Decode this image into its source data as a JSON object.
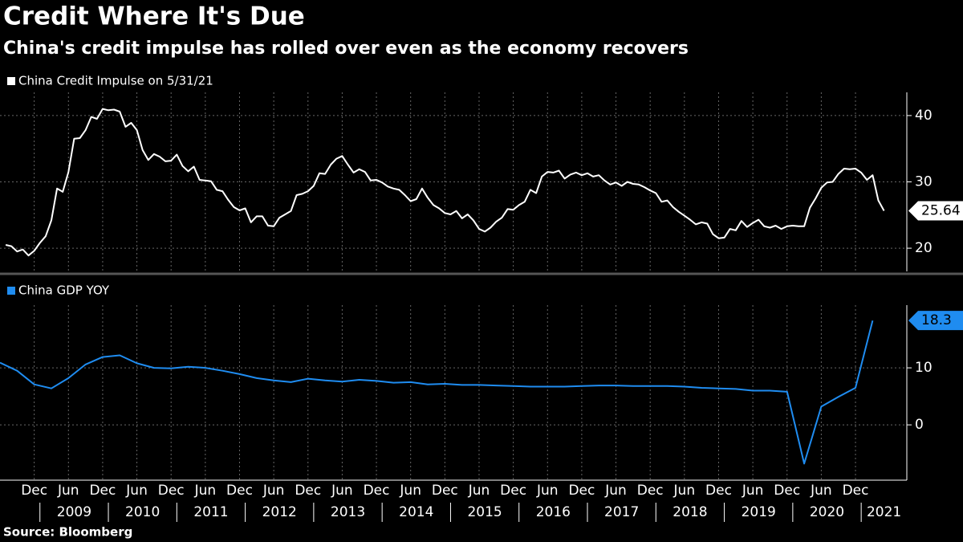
{
  "title": "Credit Where It's Due",
  "subtitle": "China's credit impulse has rolled over even as the economy recovers",
  "source": "Source: Bloomberg",
  "xlim": [
    "2008-06",
    "2021-09"
  ],
  "xticks": [
    {
      "value": "2008-12",
      "label": "Dec"
    },
    {
      "value": "2009-06",
      "label": "Jun"
    },
    {
      "value": "2009-12",
      "label": "Dec"
    },
    {
      "value": "2010-06",
      "label": "Jun"
    },
    {
      "value": "2010-12",
      "label": "Dec"
    },
    {
      "value": "2011-06",
      "label": "Jun"
    },
    {
      "value": "2011-12",
      "label": "Dec"
    },
    {
      "value": "2012-06",
      "label": "Jun"
    },
    {
      "value": "2012-12",
      "label": "Dec"
    },
    {
      "value": "2013-06",
      "label": "Jun"
    },
    {
      "value": "2013-12",
      "label": "Dec"
    },
    {
      "value": "2014-06",
      "label": "Jun"
    },
    {
      "value": "2014-12",
      "label": "Dec"
    },
    {
      "value": "2015-06",
      "label": "Jun"
    },
    {
      "value": "2015-12",
      "label": "Dec"
    },
    {
      "value": "2016-06",
      "label": "Jun"
    },
    {
      "value": "2016-12",
      "label": "Dec"
    },
    {
      "value": "2017-06",
      "label": "Jun"
    },
    {
      "value": "2017-12",
      "label": "Dec"
    },
    {
      "value": "2018-06",
      "label": "Jun"
    },
    {
      "value": "2018-12",
      "label": "Dec"
    },
    {
      "value": "2019-06",
      "label": "Jun"
    },
    {
      "value": "2019-12",
      "label": "Dec"
    },
    {
      "value": "2020-06",
      "label": "Jun"
    },
    {
      "value": "2020-12",
      "label": "Dec"
    }
  ],
  "year_labels": [
    "2009",
    "2010",
    "2011",
    "2012",
    "2013",
    "2014",
    "2015",
    "2016",
    "2017",
    "2018",
    "2019",
    "2020",
    "2021"
  ],
  "chart_data": [
    {
      "type": "line",
      "ylim": [
        16.5,
        43.5
      ],
      "yticks": [
        20,
        30,
        40
      ],
      "grid": true,
      "series": [
        {
          "name": "China Credit Impulse on 5/31/21",
          "color": "#ffffff",
          "start": "2008-07",
          "step_months": 1,
          "values": [
            20.5,
            20.3,
            19.5,
            19.8,
            18.9,
            19.6,
            20.8,
            21.8,
            24.2,
            29.0,
            28.5,
            31.5,
            36.5,
            36.6,
            37.8,
            39.8,
            39.5,
            41.0,
            40.8,
            40.9,
            40.6,
            38.3,
            38.9,
            37.8,
            34.8,
            33.3,
            34.2,
            33.8,
            33.1,
            33.2,
            34.1,
            32.4,
            31.6,
            32.3,
            30.3,
            30.2,
            30.1,
            28.8,
            28.6,
            27.3,
            26.2,
            25.7,
            26.0,
            23.9,
            24.8,
            24.8,
            23.4,
            23.3,
            24.6,
            25.1,
            25.6,
            28.0,
            28.2,
            28.6,
            29.4,
            31.3,
            31.2,
            32.6,
            33.5,
            33.9,
            32.6,
            31.4,
            31.9,
            31.5,
            30.2,
            30.3,
            29.9,
            29.3,
            29.0,
            28.8,
            28.0,
            27.1,
            27.4,
            29.0,
            27.6,
            26.5,
            26.0,
            25.3,
            25.1,
            25.6,
            24.5,
            25.1,
            24.2,
            22.9,
            22.5,
            23.1,
            24.0,
            24.6,
            25.9,
            25.8,
            26.5,
            27.0,
            28.8,
            28.3,
            30.8,
            31.5,
            31.4,
            31.7,
            30.5,
            31.1,
            31.4,
            31.0,
            31.3,
            30.8,
            31.0,
            30.2,
            29.6,
            29.9,
            29.4,
            30.0,
            29.7,
            29.6,
            29.2,
            28.7,
            28.3,
            27.0,
            27.2,
            26.2,
            25.5,
            24.9,
            24.3,
            23.6,
            23.9,
            23.7,
            22.1,
            21.5,
            21.6,
            22.9,
            22.7,
            24.1,
            23.2,
            23.8,
            24.3,
            23.3,
            23.1,
            23.4,
            22.9,
            23.3,
            23.4,
            23.3,
            23.3,
            26.1,
            27.5,
            29.1,
            29.9,
            30.0,
            31.2,
            32.0,
            31.9,
            32.0,
            31.4,
            30.3,
            31.0,
            27.2,
            25.64
          ]
        }
      ]
    },
    {
      "type": "line",
      "ylim": [
        -9.7,
        21
      ],
      "yticks": [
        0,
        10
      ],
      "grid": true,
      "series": [
        {
          "name": "China GDP YOY",
          "color": "#1f8cf0",
          "start": "2008-06",
          "step_months": 3,
          "values": [
            10.9,
            9.5,
            7.1,
            6.4,
            8.2,
            10.6,
            11.9,
            12.2,
            10.8,
            10.0,
            9.9,
            10.2,
            10.0,
            9.5,
            8.9,
            8.2,
            7.8,
            7.5,
            8.1,
            7.8,
            7.6,
            7.9,
            7.7,
            7.4,
            7.5,
            7.1,
            7.2,
            7.0,
            7.0,
            6.9,
            6.8,
            6.7,
            6.7,
            6.7,
            6.8,
            6.9,
            6.9,
            6.8,
            6.8,
            6.8,
            6.7,
            6.5,
            6.4,
            6.3,
            6.0,
            6.0,
            5.8,
            -6.8,
            3.2,
            4.9,
            6.5,
            18.3
          ]
        }
      ]
    }
  ]
}
